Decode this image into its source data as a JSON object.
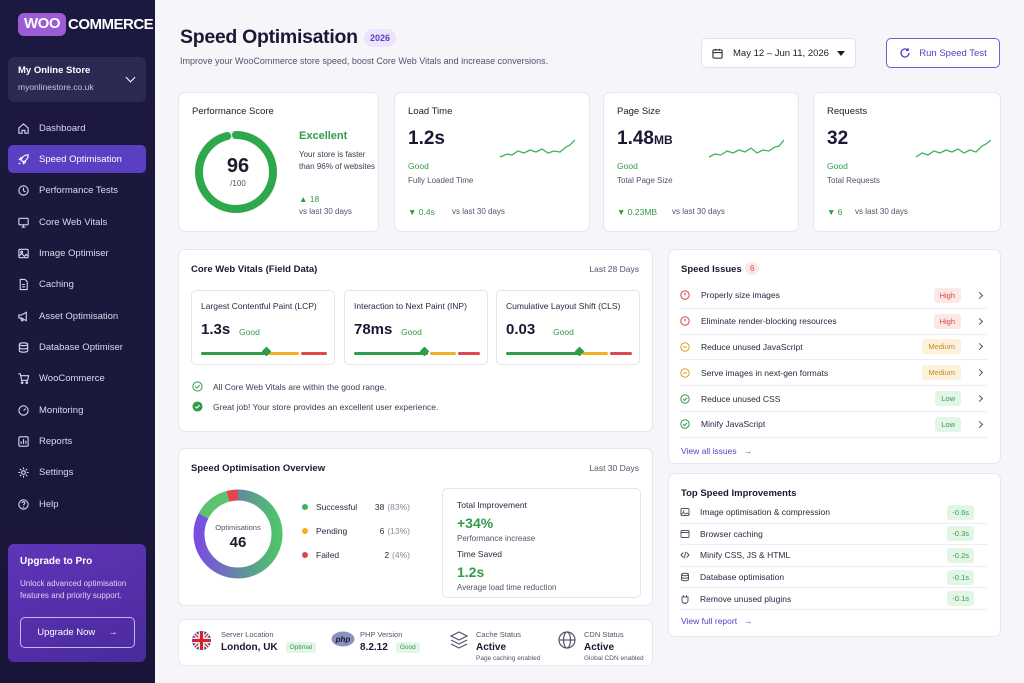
{
  "brand": {
    "badge": "WOO",
    "name": "COMMERCE"
  },
  "store": {
    "name": "My Online Store",
    "url": "myonlinestore.co.uk"
  },
  "nav": [
    {
      "label": "Dashboard",
      "icon": "home-icon"
    },
    {
      "label": "Speed Optimisation",
      "icon": "rocket-icon",
      "active": true
    },
    {
      "label": "Performance Tests",
      "icon": "clock-icon"
    },
    {
      "label": "Core Web Vitals",
      "icon": "monitor-icon"
    },
    {
      "label": "Image Optimiser",
      "icon": "image-icon"
    },
    {
      "label": "Caching",
      "icon": "file-icon"
    },
    {
      "label": "Asset Optimisation",
      "icon": "megaphone-icon"
    },
    {
      "label": "Database Optimiser",
      "icon": "database-icon"
    },
    {
      "label": "WooCommerce",
      "icon": "cart-icon"
    },
    {
      "label": "Monitoring",
      "icon": "gauge-icon"
    },
    {
      "label": "Reports",
      "icon": "chart-icon"
    },
    {
      "label": "Settings",
      "icon": "gear-icon"
    },
    {
      "label": "Help",
      "icon": "help-icon"
    }
  ],
  "upgrade": {
    "title": "Upgrade to Pro",
    "desc_line1": "Unlock advanced optimisation",
    "desc_line2": "features and priority support.",
    "button": "Upgrade Now",
    "arrow": "→"
  },
  "header": {
    "title": "Speed Optimisation",
    "year": "2026",
    "subtitle": "Improve your WooCommerce store speed, boost Core Web Vitals and increase conversions.",
    "date_range": "May 12 – Jun 11, 2026",
    "run_button": "Run Speed Test"
  },
  "performance": {
    "label": "Performance Score",
    "score": "96",
    "denominator": "/100",
    "score_fraction": 0.96,
    "rating": "Excellent",
    "desc": "Your store is faster than 96% of websites",
    "delta": "▲ 18",
    "vs": "vs last 30 days"
  },
  "kpis": [
    {
      "label": "Load Time",
      "value": "1.2s",
      "status": "Good",
      "sub": "Fully Loaded Time",
      "delta": "▼ 0.4s",
      "vs": "vs last 30 days"
    },
    {
      "label": "Page Size",
      "value": "1.48",
      "unit": "MB",
      "status": "Good",
      "sub": "Total Page Size",
      "delta": "▼ 0.23MB",
      "vs": "vs last 30 days"
    },
    {
      "label": "Requests",
      "value": "32",
      "status": "Good",
      "sub": "Total Requests",
      "delta": "▼ 6",
      "vs": "vs last 30 days"
    }
  ],
  "vitals": {
    "title": "Core Web Vitals (Field Data)",
    "period": "Last 28 Days",
    "items": [
      {
        "name": "Largest Contentful Paint (LCP)",
        "value": "1.3s",
        "status": "Good"
      },
      {
        "name": "Interaction to Next Paint (INP)",
        "value": "78ms",
        "status": "Good"
      },
      {
        "name": "Cumulative Layout Shift (CLS)",
        "value": "0.03",
        "status": "Good"
      }
    ],
    "notes": [
      "All Core Web Vitals are within the good range.",
      "Great job! Your store provides an excellent user experience."
    ]
  },
  "issues": {
    "title": "Speed Issues",
    "count": "6",
    "items": [
      {
        "label": "Properly size images",
        "severity": "High"
      },
      {
        "label": "Eliminate render-blocking resources",
        "severity": "High"
      },
      {
        "label": "Reduce unused JavaScript",
        "severity": "Medium"
      },
      {
        "label": "Serve images in next-gen formats",
        "severity": "Medium"
      },
      {
        "label": "Reduce unused CSS",
        "severity": "Low"
      },
      {
        "label": "Minify JavaScript",
        "severity": "Low"
      }
    ],
    "link": "View all issues",
    "arrow": "→"
  },
  "overview": {
    "title": "Speed Optimisation Overview",
    "period": "Last 30 Days",
    "center_label": "Optimisations",
    "center_value": "46",
    "legend": [
      {
        "label": "Successful",
        "count": "38",
        "pct": "(83%)",
        "color": "#3fb25a"
      },
      {
        "label": "Pending",
        "count": "6",
        "pct": "(13%)",
        "color": "#f0b020"
      },
      {
        "label": "Failed",
        "count": "2",
        "pct": "(4%)",
        "color": "#e0474a"
      }
    ],
    "total_improvement_label": "Total Improvement",
    "total_improvement_value": "+34%",
    "total_improvement_sub": "Performance increase",
    "time_saved_label": "Time Saved",
    "time_saved_value": "1.2s",
    "time_saved_sub": "Average load time reduction"
  },
  "improvements": {
    "title": "Top Speed Improvements",
    "items": [
      {
        "label": "Image optimisation & compression",
        "delta": "-0.6s",
        "icon": "image-icon"
      },
      {
        "label": "Browser caching",
        "delta": "-0.3s",
        "icon": "window-icon"
      },
      {
        "label": "Minify CSS, JS & HTML",
        "delta": "-0.2s",
        "icon": "code-icon"
      },
      {
        "label": "Database optimisation",
        "delta": "-0.1s",
        "icon": "database-icon"
      },
      {
        "label": "Remove unused plugins",
        "delta": "-0.1s",
        "icon": "plugin-icon"
      }
    ],
    "link": "View full report",
    "arrow": "→"
  },
  "server": [
    {
      "title": "Server Location",
      "value": "London, UK",
      "badge": "Optimal"
    },
    {
      "title": "PHP Version",
      "value": "8.2.12",
      "badge": "Good",
      "icon_text": "php"
    },
    {
      "title": "Cache Status",
      "value": "Active",
      "sub": "Page caching enabled"
    },
    {
      "title": "CDN Status",
      "value": "Active",
      "sub": "Global CDN enabled"
    }
  ]
}
